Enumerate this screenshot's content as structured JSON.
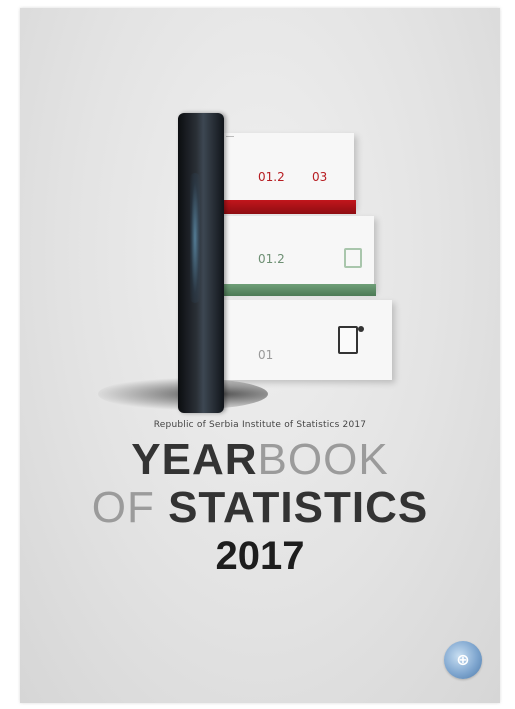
{
  "cover": {
    "illustration": {
      "panel_labels": [
        "01.2",
        "03",
        "01.2",
        "01"
      ]
    },
    "subtitle": "Republic of Serbia Institute of Statistics 2017",
    "title": {
      "line1_bold": "YEAR",
      "line1_light": "BOOK",
      "line2_light": "OF ",
      "line2_bold": "STATISTICS",
      "year": "2017"
    },
    "colors": {
      "accent_red": "#b71d22",
      "accent_green": "#5e8b66",
      "background": "#e3e3e3"
    },
    "logo": {
      "icon": "institute-logo-icon"
    }
  }
}
